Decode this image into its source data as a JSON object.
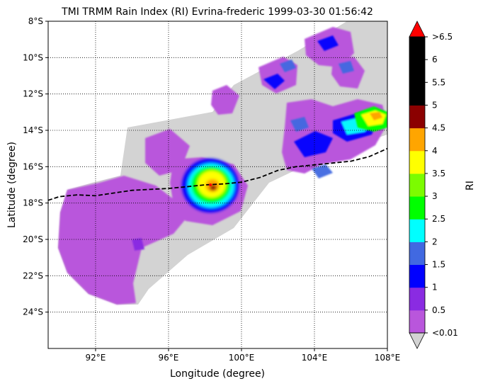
{
  "title": "TMI TRMM Rain Index (RI) Evrina-frederic 1999-03-30 01:56:42",
  "x_axis": {
    "label": "Longitude (degree)",
    "range": [
      89.4,
      108.0
    ],
    "ticks": [
      {
        "value": 92,
        "label": "92°E"
      },
      {
        "value": 96,
        "label": "96°E"
      },
      {
        "value": 100,
        "label": "100°E"
      },
      {
        "value": 104,
        "label": "104°E"
      },
      {
        "value": 108,
        "label": "108°E"
      }
    ]
  },
  "y_axis": {
    "label": "Latitude (degree)",
    "range": [
      -26.0,
      -8.0
    ],
    "ticks": [
      {
        "value": -8,
        "label": "8°S"
      },
      {
        "value": -10,
        "label": "10°S"
      },
      {
        "value": -12,
        "label": "12°S"
      },
      {
        "value": -14,
        "label": "14°S"
      },
      {
        "value": -16,
        "label": "16°S"
      },
      {
        "value": -18,
        "label": "18°S"
      },
      {
        "value": -20,
        "label": "20°S"
      },
      {
        "value": -22,
        "label": "22°S"
      },
      {
        "value": -24,
        "label": "24°S"
      }
    ]
  },
  "grid": "dotted",
  "colorbar": {
    "label": "RI",
    "over_color": "#ff0000",
    "under_color": "#d3d3d3",
    "bins": [
      {
        "color": "#b956dc"
      },
      {
        "color": "#8a2be2"
      },
      {
        "color": "#0000ff"
      },
      {
        "color": "#4169e1"
      },
      {
        "color": "#00ffff"
      },
      {
        "color": "#00ff00"
      },
      {
        "color": "#7cfc00"
      },
      {
        "color": "#ffff00"
      },
      {
        "color": "#ffa500"
      },
      {
        "color": "#8b0000"
      },
      {
        "color": "#000000"
      },
      {
        "color": "#000000"
      },
      {
        "color": "#000000"
      }
    ],
    "tick_labels": [
      "<0.01",
      "0.5",
      "1",
      "1.5",
      "2",
      "2.5",
      "3",
      "3.5",
      "4",
      "4.5",
      "5",
      "5.5",
      "6",
      ">6.5"
    ]
  },
  "track": [
    [
      89.4,
      -17.85
    ],
    [
      90.0,
      -17.65
    ],
    [
      91.0,
      -17.55
    ],
    [
      92.0,
      -17.6
    ],
    [
      93.0,
      -17.45
    ],
    [
      94.0,
      -17.3
    ],
    [
      95.0,
      -17.25
    ],
    [
      96.0,
      -17.2
    ],
    [
      97.0,
      -17.1
    ],
    [
      98.0,
      -17.0
    ],
    [
      99.0,
      -16.95
    ],
    [
      100.0,
      -16.85
    ],
    [
      101.0,
      -16.6
    ],
    [
      102.0,
      -16.2
    ],
    [
      103.0,
      -16.0
    ],
    [
      104.0,
      -15.9
    ],
    [
      105.0,
      -15.8
    ],
    [
      106.0,
      -15.7
    ],
    [
      107.0,
      -15.45
    ],
    [
      108.0,
      -15.0
    ]
  ],
  "storm_center": {
    "lon": 98.3,
    "lat": -17.0
  }
}
